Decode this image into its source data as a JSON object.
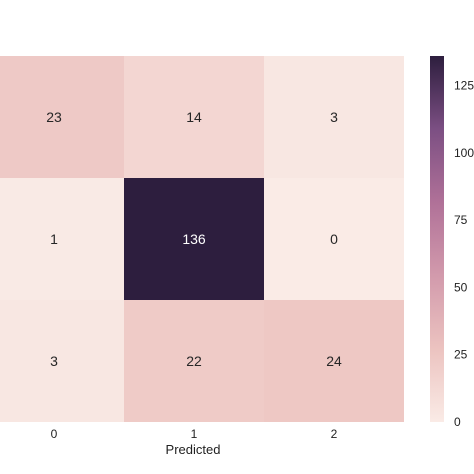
{
  "chart_data": {
    "type": "heatmap",
    "title": "",
    "xlabel": "Predicted",
    "ylabel": "",
    "x_categories": [
      "0",
      "1",
      "2"
    ],
    "y_categories": [
      "",
      "",
      ""
    ],
    "values": [
      [
        23,
        14,
        3
      ],
      [
        1,
        136,
        0
      ],
      [
        3,
        22,
        24
      ]
    ],
    "colorbar": {
      "range": [
        0,
        136
      ],
      "ticks": [
        0,
        25,
        50,
        75,
        100,
        125
      ],
      "tick_labels": [
        "0",
        "25",
        "50",
        "75",
        "100",
        "125"
      ]
    },
    "colormap": [
      "#faebe6",
      "#ecc3c0",
      "#d29aac",
      "#b07198",
      "#7c4f83",
      "#2d1e3e"
    ],
    "text_colors": {
      "dark": "#262626",
      "light": "#ffffff"
    }
  }
}
